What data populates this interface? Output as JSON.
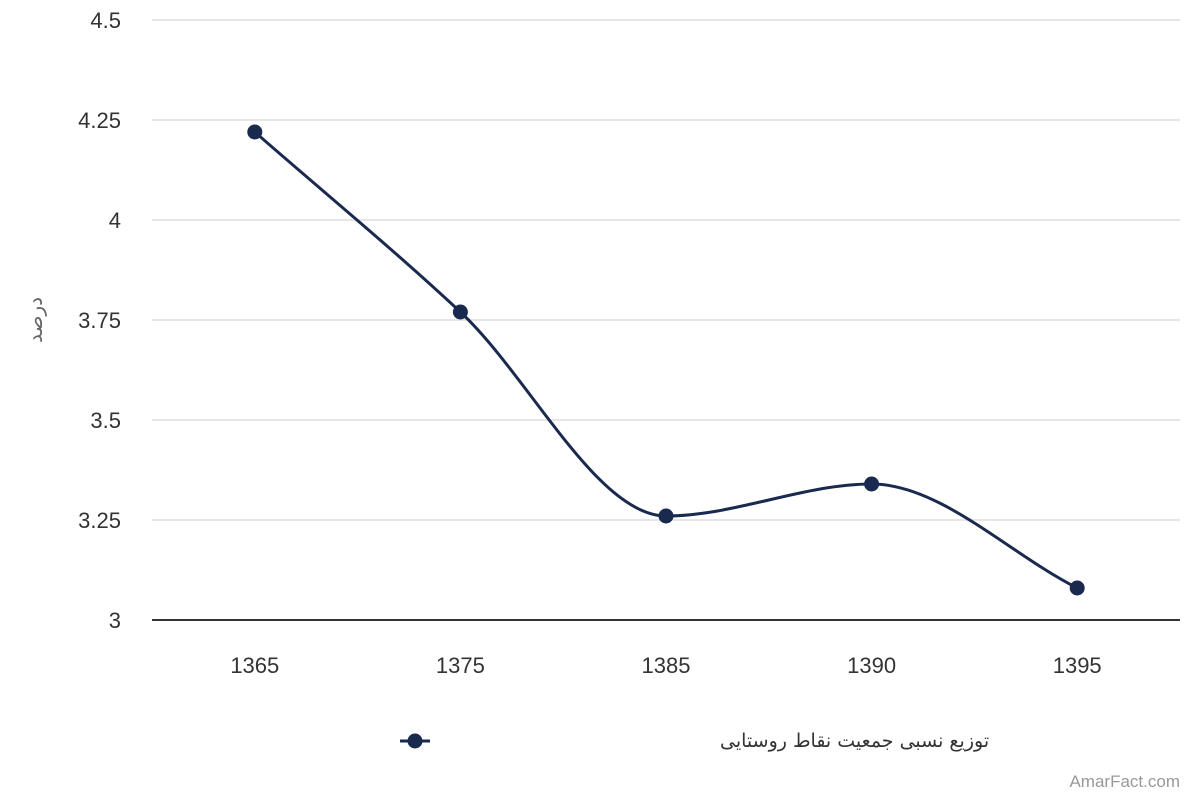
{
  "chart_data": {
    "type": "line",
    "categories": [
      "1365",
      "1375",
      "1385",
      "1390",
      "1395"
    ],
    "series": [
      {
        "name": "توزیع نسبی جمعیت نقاط روستایی",
        "values": [
          4.22,
          3.77,
          3.26,
          3.34,
          3.08
        ]
      }
    ],
    "ylabel": "درصد",
    "xlabel": "",
    "ylim": [
      3,
      4.5
    ],
    "yticks": [
      3,
      3.25,
      3.5,
      3.75,
      4,
      4.25,
      4.5
    ],
    "ytick_labels": [
      "3",
      "3.25",
      "3.5",
      "3.75",
      "4",
      "4.25",
      "4.5"
    ],
    "grid": true,
    "legend_position": "bottom",
    "smooth": true,
    "colors": {
      "series": "#1a2a4f",
      "grid": "#dddddd",
      "axis": "#333333"
    }
  },
  "watermark": "AmarFact.com"
}
